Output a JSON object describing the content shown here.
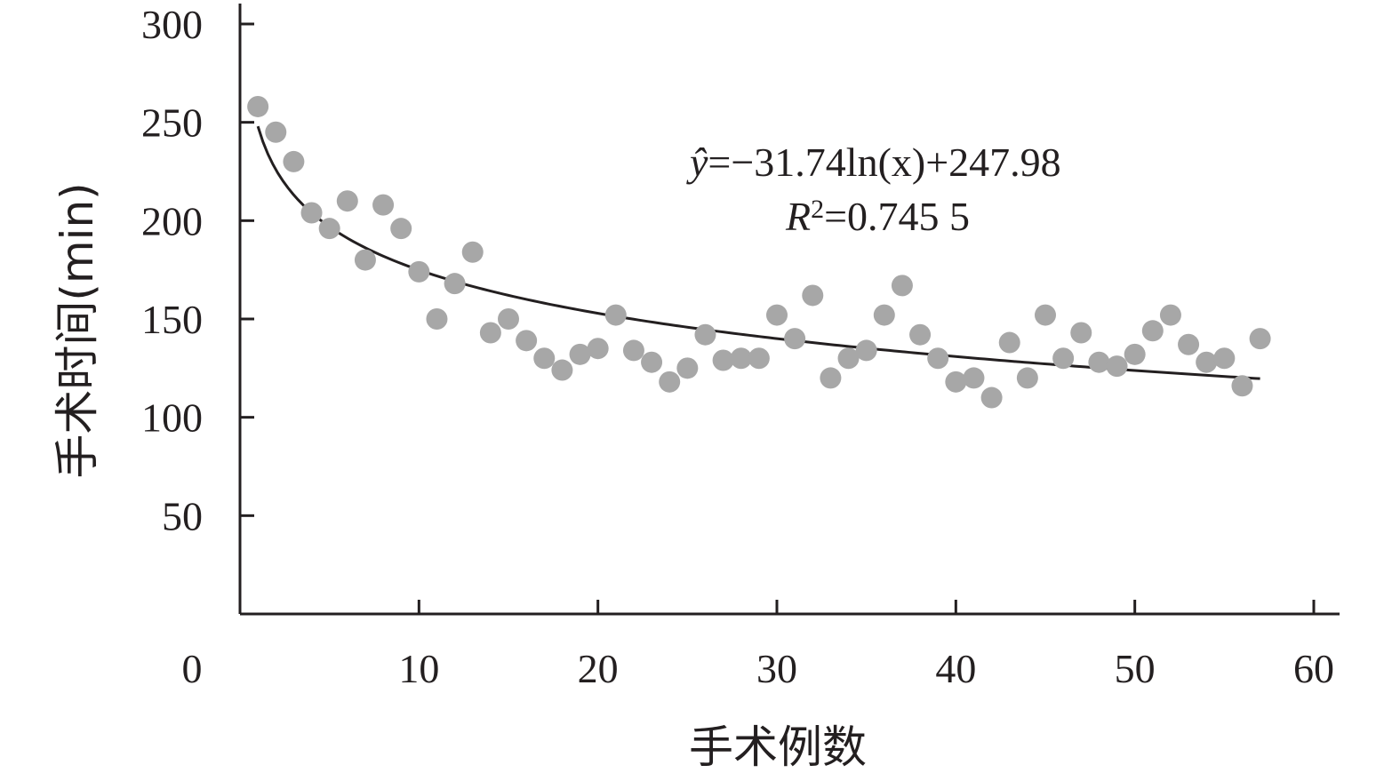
{
  "chart_data": {
    "type": "scatter",
    "xlabel": "手术例数",
    "ylabel": "手术时间(min)",
    "xlim": [
      0,
      60
    ],
    "ylim": [
      0,
      300
    ],
    "xticks": [
      0,
      10,
      20,
      30,
      40,
      50,
      60
    ],
    "yticks": [
      50,
      100,
      150,
      200,
      250,
      300
    ],
    "grid": false,
    "legend": "none",
    "point_color": "#a7a7a7",
    "line_color": "#231f20",
    "series": [
      {
        "values": [
          [
            1,
            258
          ],
          [
            2,
            245
          ],
          [
            3,
            230
          ],
          [
            4,
            204
          ],
          [
            5,
            196
          ],
          [
            6,
            210
          ],
          [
            7,
            180
          ],
          [
            8,
            208
          ],
          [
            9,
            196
          ],
          [
            10,
            174
          ],
          [
            11,
            150
          ],
          [
            12,
            168
          ],
          [
            13,
            184
          ],
          [
            14,
            143
          ],
          [
            15,
            150
          ],
          [
            16,
            139
          ],
          [
            17,
            130
          ],
          [
            18,
            124
          ],
          [
            19,
            132
          ],
          [
            20,
            135
          ],
          [
            21,
            152
          ],
          [
            22,
            134
          ],
          [
            23,
            128
          ],
          [
            24,
            118
          ],
          [
            25,
            125
          ],
          [
            26,
            142
          ],
          [
            27,
            129
          ],
          [
            28,
            130
          ],
          [
            29,
            130
          ],
          [
            30,
            152
          ],
          [
            31,
            140
          ],
          [
            32,
            162
          ],
          [
            33,
            120
          ],
          [
            34,
            130
          ],
          [
            35,
            134
          ],
          [
            36,
            152
          ],
          [
            37,
            167
          ],
          [
            38,
            142
          ],
          [
            39,
            130
          ],
          [
            40,
            118
          ],
          [
            41,
            120
          ],
          [
            42,
            110
          ],
          [
            43,
            138
          ],
          [
            44,
            120
          ],
          [
            45,
            152
          ],
          [
            46,
            130
          ],
          [
            47,
            143
          ],
          [
            48,
            128
          ],
          [
            49,
            126
          ],
          [
            50,
            132
          ],
          [
            51,
            144
          ],
          [
            52,
            152
          ],
          [
            53,
            137
          ],
          [
            54,
            128
          ],
          [
            55,
            130
          ],
          [
            56,
            116
          ],
          [
            57,
            140
          ]
        ]
      }
    ],
    "trendline": {
      "type": "logarithmic",
      "coefficient": -31.74,
      "intercept": 247.98,
      "x_range": [
        1,
        57
      ]
    },
    "annotations": {
      "equation_yhat": "ŷ",
      "equation_rest": "=−31.74ln(x)+247.98",
      "r2_label": "R",
      "r2_sup": "2",
      "r2_rest": "=0.745 5"
    }
  }
}
